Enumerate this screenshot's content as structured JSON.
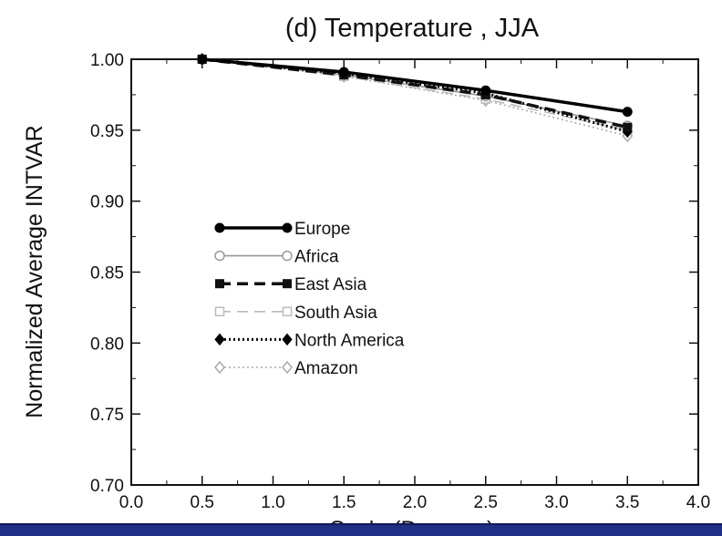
{
  "chart_data": {
    "type": "line",
    "title": "(d) Temperature , JJA",
    "xlabel": "Scale (Degrees)",
    "ylabel": "Normalized Average INTVAR",
    "xlim": [
      0.0,
      4.0
    ],
    "ylim": [
      0.7,
      1.0
    ],
    "xticks": [
      "0.0",
      "0.5",
      "1.0",
      "1.5",
      "2.0",
      "2.5",
      "3.0",
      "3.5",
      "4.0"
    ],
    "yticks": [
      "1.00",
      "0.95",
      "0.90",
      "0.85",
      "0.80",
      "0.75",
      "0.70"
    ],
    "grid": false,
    "legend_position": "center-left",
    "x": [
      0.5,
      1.5,
      2.5,
      3.5
    ],
    "series": [
      {
        "name": "Europe",
        "values": [
          1.0,
          0.991,
          0.978,
          0.963
        ],
        "color": "#000000",
        "line": "solid",
        "marker": "filled-circle"
      },
      {
        "name": "Africa",
        "values": [
          1.0,
          0.989,
          0.974,
          0.953
        ],
        "color": "#999999",
        "line": "solid",
        "marker": "open-circle"
      },
      {
        "name": "East Asia",
        "values": [
          1.0,
          0.989,
          0.975,
          0.952
        ],
        "color": "#111111",
        "line": "dashed",
        "marker": "filled-square"
      },
      {
        "name": "South Asia",
        "values": [
          1.0,
          0.988,
          0.972,
          0.95
        ],
        "color": "#bbbbbb",
        "line": "dashed",
        "marker": "open-square"
      },
      {
        "name": "North America",
        "values": [
          1.0,
          0.99,
          0.976,
          0.949
        ],
        "color": "#000000",
        "line": "dotted",
        "marker": "filled-diamond"
      },
      {
        "name": "Amazon",
        "values": [
          1.0,
          0.988,
          0.971,
          0.946
        ],
        "color": "#aaaaaa",
        "line": "dotted",
        "marker": "open-diamond"
      }
    ]
  }
}
